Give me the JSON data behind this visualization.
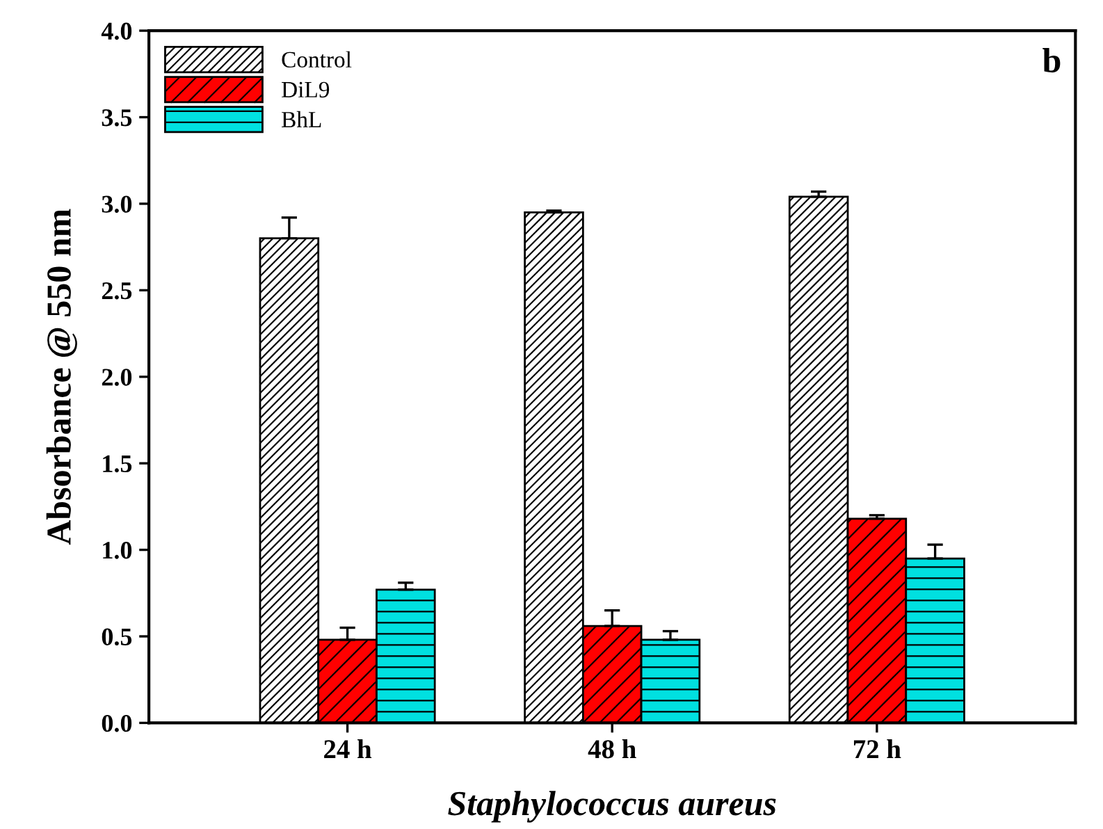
{
  "chart_data": {
    "type": "bar",
    "xlabel": "Staphylococcus aureus",
    "ylabel": "Absorbance @ 550 nm",
    "annotations": [
      "b"
    ],
    "categories": [
      "24 h",
      "48 h",
      "72 h"
    ],
    "series": [
      {
        "name": "Control",
        "color": "#ffffff",
        "values": [
          2.8,
          2.95,
          3.04
        ],
        "errors": [
          0.12,
          0.01,
          0.03
        ]
      },
      {
        "name": "DiL9",
        "color": "#ff0000",
        "values": [
          0.48,
          0.56,
          1.18
        ],
        "errors": [
          0.07,
          0.09,
          0.02
        ]
      },
      {
        "name": "BhL",
        "color": "#00e0e0",
        "values": [
          0.77,
          0.48,
          0.95
        ],
        "errors": [
          0.04,
          0.05,
          0.08
        ]
      }
    ],
    "ylim": [
      0,
      4.0
    ],
    "yticks": [
      {
        "value": 0,
        "label": "0.0"
      },
      {
        "value": 0.5,
        "label": "0.5"
      },
      {
        "value": 1.0,
        "label": "1.0"
      },
      {
        "value": 1.5,
        "label": "1.5"
      },
      {
        "value": 2.0,
        "label": "2.0"
      },
      {
        "value": 2.5,
        "label": "2.5"
      },
      {
        "value": 3.0,
        "label": "3.0"
      },
      {
        "value": 3.5,
        "label": "3.5"
      },
      {
        "value": 4.0,
        "label": "4.0"
      }
    ],
    "grid": false,
    "legend": "top left"
  }
}
